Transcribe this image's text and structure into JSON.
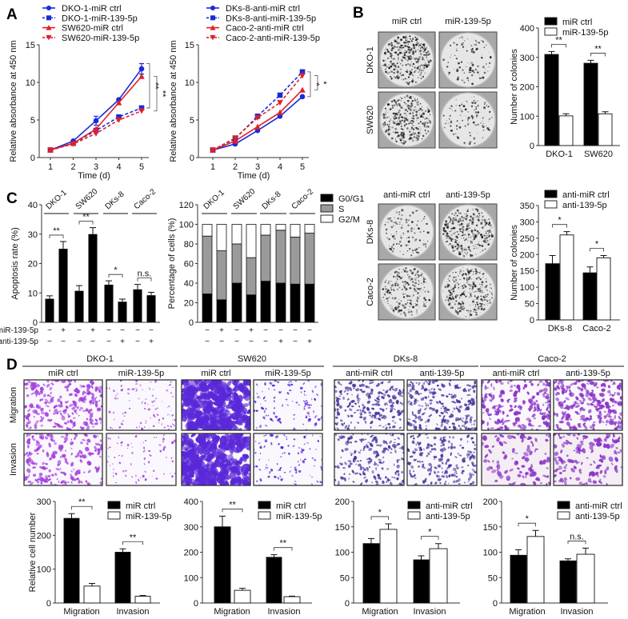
{
  "panel_labels": {
    "A": "A",
    "B": "B",
    "C": "C",
    "D": "D"
  },
  "colony_plates": {
    "top": {
      "columns": [
        "miR ctrl",
        "miR-139-5p"
      ],
      "rows": [
        "DKO-1",
        "SW620"
      ]
    },
    "bottom": {
      "columns": [
        "anti-miR ctrl",
        "anti-139-5p"
      ],
      "rows": [
        "DKs-8",
        "Caco-2"
      ]
    }
  },
  "transwell_images": {
    "rows": [
      "Migration",
      "Invasion"
    ],
    "groups": [
      {
        "name": "DKO-1",
        "conditions": [
          "miR ctrl",
          "miR-139-5p"
        ],
        "stain": "#a440e0"
      },
      {
        "name": "SW620",
        "conditions": [
          "miR ctrl",
          "miR-139-5p"
        ],
        "stain": "#5a28d8"
      },
      {
        "name": "DKs-8",
        "conditions": [
          "anti-miR ctrl",
          "anti-139-5p"
        ],
        "stain": "#4a3a9e"
      },
      {
        "name": "Caco-2",
        "conditions": [
          "anti-miR ctrl",
          "anti-139-5p"
        ],
        "stain": "#8a36c8"
      }
    ]
  },
  "chart_data": [
    {
      "id": "a1",
      "type": "line",
      "xlabel": "Time (d)",
      "ylabel": "Relative absorbance at 450 nm",
      "x": [
        1,
        2,
        3,
        4,
        5
      ],
      "ylim": [
        0,
        15
      ],
      "yticks": [
        0,
        5,
        10,
        15
      ],
      "series": [
        {
          "name": "DKO-1-miR ctrl",
          "color": "#1a2bd6",
          "dashed": false,
          "marker": "circle",
          "values": [
            1,
            2.2,
            4.9,
            7.7,
            11.8
          ],
          "errors": [
            0,
            0,
            0.6,
            0,
            0.7
          ]
        },
        {
          "name": "DKO-1-miR-139-5p",
          "color": "#1a2bd6",
          "dashed": true,
          "marker": "square",
          "values": [
            1,
            1.9,
            3.6,
            5.4,
            6.6
          ],
          "errors": [
            0,
            0,
            0,
            0,
            0
          ]
        },
        {
          "name": "SW620-miR ctrl",
          "color": "#e0202a",
          "dashed": false,
          "marker": "triangle-up",
          "values": [
            1,
            1.9,
            3.8,
            7.3,
            10.8
          ],
          "errors": [
            0,
            0,
            0,
            0,
            0
          ]
        },
        {
          "name": "SW620-miR-139-5p",
          "color": "#e0202a",
          "dashed": true,
          "marker": "triangle-down",
          "values": [
            1,
            1.8,
            3.2,
            5.0,
            6.2
          ],
          "errors": [
            0,
            0,
            0,
            0,
            0
          ]
        }
      ],
      "significance": [
        {
          "between": [
            0,
            1
          ],
          "label": "**"
        },
        {
          "between": [
            2,
            3
          ],
          "label": "**"
        }
      ]
    },
    {
      "id": "a2",
      "type": "line",
      "xlabel": "Time (d)",
      "ylabel": "Relative absorbance at 450 nm",
      "x": [
        1,
        2,
        3,
        4,
        5
      ],
      "ylim": [
        0,
        15
      ],
      "yticks": [
        0,
        5,
        10,
        15
      ],
      "series": [
        {
          "name": "DKs-8-anti-miR ctrl",
          "color": "#1a2bd6",
          "dashed": false,
          "marker": "circle",
          "values": [
            1,
            1.8,
            3.6,
            5.5,
            8.1
          ],
          "errors": [
            0,
            0,
            0,
            0,
            0
          ]
        },
        {
          "name": "DKs-8-anti-miR-139-5p",
          "color": "#1a2bd6",
          "dashed": true,
          "marker": "square",
          "values": [
            1,
            2.5,
            5.5,
            8.3,
            11.4
          ],
          "errors": [
            0,
            0,
            0,
            0,
            0
          ]
        },
        {
          "name": "Caco-2-anti-miR ctrl",
          "color": "#e0202a",
          "dashed": false,
          "marker": "triangle-up",
          "values": [
            1,
            2.2,
            4.1,
            6.0,
            9.0
          ],
          "errors": [
            0,
            0,
            0,
            0,
            0
          ]
        },
        {
          "name": "Caco-2-anti-miR-139-5p",
          "color": "#e0202a",
          "dashed": true,
          "marker": "triangle-down",
          "values": [
            1,
            2.6,
            5.3,
            7.3,
            10.9
          ],
          "errors": [
            0,
            0,
            0,
            0,
            0
          ]
        }
      ],
      "significance": [
        {
          "between": [
            1,
            0
          ],
          "label": "*"
        },
        {
          "between": [
            3,
            2
          ],
          "label": "*"
        }
      ]
    },
    {
      "id": "b1",
      "type": "bar",
      "ylabel": "Number of colonies",
      "categories": [
        "DKO-1",
        "SW620"
      ],
      "ylim": [
        0,
        400
      ],
      "yticks": [
        0,
        100,
        200,
        300,
        400
      ],
      "series": [
        {
          "name": "miR ctrl",
          "fill": "#000000",
          "values": [
            310,
            280
          ],
          "errors": [
            10,
            10
          ]
        },
        {
          "name": "miR-139-5p",
          "fill": "#ffffff",
          "values": [
            101,
            108
          ],
          "errors": [
            7,
            7
          ]
        }
      ],
      "significance": [
        "**",
        "**"
      ]
    },
    {
      "id": "b2",
      "type": "bar",
      "ylabel": "Number of colonies",
      "categories": [
        "DKs-8",
        "Caco-2"
      ],
      "ylim": [
        0,
        350
      ],
      "yticks": [
        0,
        50,
        100,
        150,
        200,
        250,
        300,
        350
      ],
      "series": [
        {
          "name": "anti-miR ctrl",
          "fill": "#000000",
          "values": [
            172,
            144
          ],
          "errors": [
            25,
            18
          ]
        },
        {
          "name": "anti-139-5p",
          "fill": "#ffffff",
          "values": [
            260,
            190
          ],
          "errors": [
            10,
            7
          ]
        }
      ],
      "significance": [
        "*",
        "*"
      ]
    },
    {
      "id": "c1",
      "type": "bar",
      "ylabel": "Apoptosis rate (%)",
      "ylim": [
        0,
        40
      ],
      "yticks": [
        0,
        10,
        20,
        30,
        40
      ],
      "groups": [
        "DKO-1",
        "SW620",
        "DKs-8",
        "Caco-2"
      ],
      "values": [
        8,
        25,
        10.7,
        30,
        12.8,
        7,
        11.2,
        9.2
      ],
      "errors": [
        1,
        2.5,
        1.8,
        2.2,
        1.3,
        0.9,
        1.7,
        1
      ],
      "treatments": [
        {
          "label": "miR-139-5p",
          "signs": [
            "−",
            "+",
            "−",
            "+",
            "−",
            "−",
            "−",
            "−"
          ]
        },
        {
          "label": "anti-139-5p",
          "signs": [
            "−",
            "−",
            "−",
            "−",
            "−",
            "+",
            "−",
            "+"
          ]
        }
      ],
      "significance": [
        "**",
        "**",
        "*",
        "n.s."
      ]
    },
    {
      "id": "c2",
      "type": "stacked-bar",
      "ylabel": "Percentage of cells (%)",
      "ylim": [
        0,
        120
      ],
      "yticks": [
        0,
        20,
        40,
        60,
        80,
        100,
        120
      ],
      "groups": [
        "DKO-1",
        "SW620",
        "DKs-8",
        "Caco-2"
      ],
      "series": [
        {
          "name": "G0/G1",
          "fill": "#000000",
          "values": [
            29,
            23,
            40,
            28,
            42,
            40,
            39,
            39
          ]
        },
        {
          "name": "S",
          "fill": "#9a9a9a",
          "values": [
            59,
            50,
            40,
            38,
            47,
            54,
            48,
            52
          ]
        },
        {
          "name": "G2/M",
          "fill": "#ffffff",
          "values": [
            12,
            27,
            20,
            34,
            11,
            6,
            13,
            9
          ]
        }
      ],
      "treatments": [
        {
          "signs": [
            "−",
            "+",
            "−",
            "+",
            "−",
            "−",
            "−",
            "−"
          ]
        },
        {
          "signs": [
            "−",
            "−",
            "−",
            "−",
            "−",
            "+",
            "−",
            "+"
          ]
        }
      ]
    },
    {
      "id": "d1",
      "type": "bar",
      "ylabel": "Relative cell number",
      "categories": [
        "Migration",
        "Invasion"
      ],
      "ylim": [
        0,
        300
      ],
      "yticks": [
        0,
        100,
        200,
        300
      ],
      "series": [
        {
          "name": "miR ctrl",
          "fill": "#000000",
          "values": [
            250,
            150
          ],
          "errors": [
            14,
            10
          ]
        },
        {
          "name": "miR-139-5p",
          "fill": "#ffffff",
          "values": [
            50,
            20
          ],
          "errors": [
            8,
            2
          ]
        }
      ],
      "significance": [
        "**",
        "**"
      ]
    },
    {
      "id": "d2",
      "type": "bar",
      "ylabel": "",
      "categories": [
        "Migration",
        "Invasion"
      ],
      "ylim": [
        0,
        400
      ],
      "yticks": [
        0,
        100,
        200,
        300,
        400
      ],
      "series": [
        {
          "name": "miR ctrl",
          "fill": "#000000",
          "values": [
            300,
            180
          ],
          "errors": [
            42,
            10
          ]
        },
        {
          "name": "miR-139-5p",
          "fill": "#ffffff",
          "values": [
            50,
            25
          ],
          "errors": [
            8,
            2
          ]
        }
      ],
      "significance": [
        "**",
        "**"
      ]
    },
    {
      "id": "d3",
      "type": "bar",
      "ylabel": "",
      "categories": [
        "Migration",
        "Invasion"
      ],
      "ylim": [
        0,
        200
      ],
      "yticks": [
        0,
        50,
        100,
        150,
        200
      ],
      "series": [
        {
          "name": "anti-miR ctrl",
          "fill": "#000000",
          "values": [
            117,
            85
          ],
          "errors": [
            10,
            8
          ]
        },
        {
          "name": "anti-139-5p",
          "fill": "#ffffff",
          "values": [
            145,
            107
          ],
          "errors": [
            11,
            10
          ]
        }
      ],
      "significance": [
        "*",
        "*"
      ]
    },
    {
      "id": "d4",
      "type": "bar",
      "ylabel": "",
      "categories": [
        "Migration",
        "Invasion"
      ],
      "ylim": [
        0,
        200
      ],
      "yticks": [
        0,
        50,
        100,
        150,
        200
      ],
      "series": [
        {
          "name": "anti-miR ctrl",
          "fill": "#000000",
          "values": [
            94,
            83
          ],
          "errors": [
            11,
            4
          ]
        },
        {
          "name": "anti-139-5p",
          "fill": "#ffffff",
          "values": [
            131,
            96
          ],
          "errors": [
            12,
            12
          ]
        }
      ],
      "significance": [
        "*",
        "n.s."
      ]
    }
  ]
}
